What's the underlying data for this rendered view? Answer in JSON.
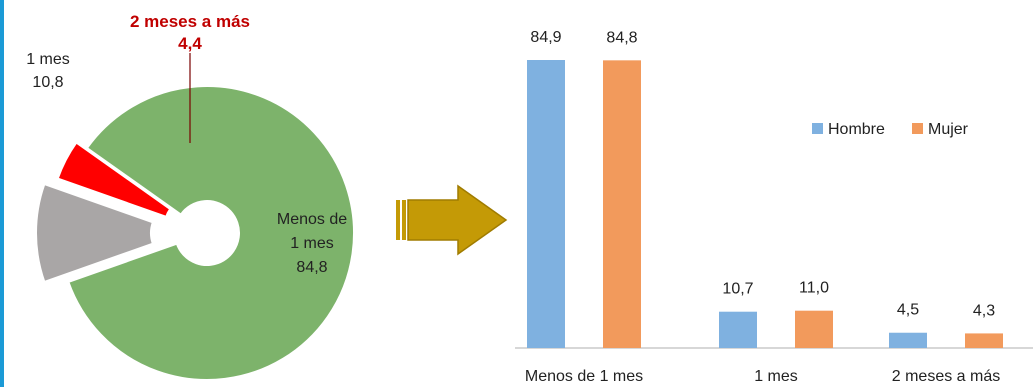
{
  "chart_data": [
    {
      "type": "pie",
      "variant": "exploded-donut",
      "slices": [
        {
          "label": "Menos de 1 mes",
          "label_lines": [
            "Menos de",
            "1 mes"
          ],
          "value": 84.8,
          "value_label": "84,8",
          "color": "#7db36b"
        },
        {
          "label": "1 mes",
          "label_lines": [
            "1 mes"
          ],
          "value": 10.8,
          "value_label": "10,8",
          "color": "#a9a6a6"
        },
        {
          "label": "2 meses a más",
          "label_lines": [
            "2 meses a más"
          ],
          "value": 4.4,
          "value_label": "4,4",
          "color": "#ff0000",
          "label_color": "#c00000"
        }
      ]
    },
    {
      "type": "bar",
      "categories": [
        "Menos de 1 mes",
        "1 mes",
        "2 meses a más"
      ],
      "series": [
        {
          "name": "Hombre",
          "color": "#7fb1e0",
          "values": [
            84.9,
            10.7,
            4.5
          ],
          "value_labels": [
            "84,9",
            "10,7",
            "4,5"
          ]
        },
        {
          "name": "Mujer",
          "color": "#f29a5c",
          "values": [
            84.8,
            11.0,
            4.3
          ],
          "value_labels": [
            "84,8",
            "11,0",
            "4,3"
          ]
        }
      ],
      "ylim": [
        0,
        90
      ],
      "legend_position": "right",
      "grid": false
    }
  ],
  "arrow": {
    "color": "#c49a06",
    "icon": "right-arrow-icon"
  }
}
